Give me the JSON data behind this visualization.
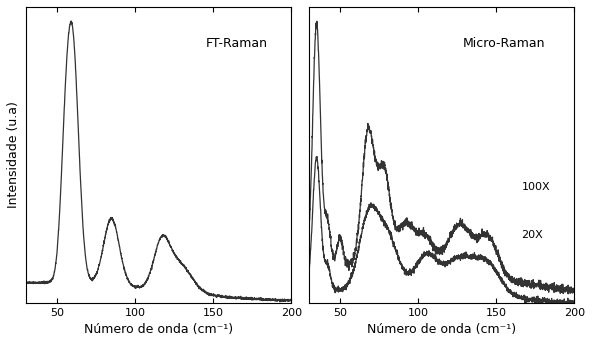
{
  "fig_width": 5.92,
  "fig_height": 3.43,
  "dpi": 100,
  "xlim": [
    30,
    200
  ],
  "xlabel": "Número de onda (cm⁻¹)",
  "ylabel": "Intensidade (u.a)",
  "label_ft": "FT-Raman",
  "label_micro": "Micro-Raman",
  "label_100x": "100X",
  "label_20x": "20X",
  "line_color": "#333333",
  "background_color": "#ffffff",
  "tick_fontsize": 8,
  "label_fontsize": 9,
  "annotation_fontsize": 9
}
